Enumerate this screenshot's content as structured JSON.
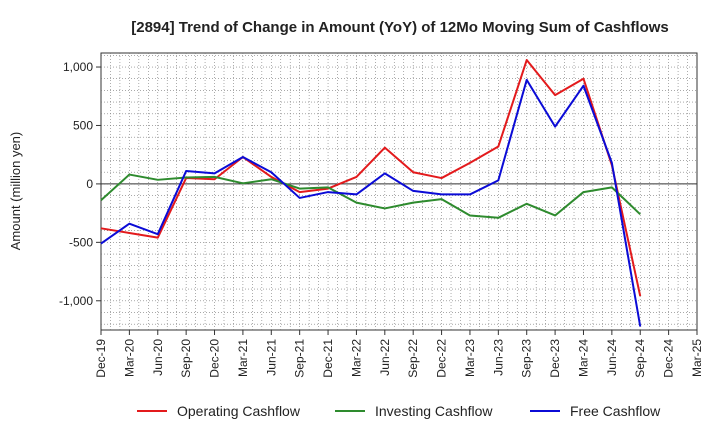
{
  "chart_data": {
    "type": "line",
    "title": "[2894]  Trend of Change in Amount (YoY) of 12Mo Moving Sum of Cashflows",
    "xlabel": "",
    "ylabel": "Amount (million yen)",
    "ylim": [
      -1250,
      1120
    ],
    "yticks": [
      -1000,
      -500,
      0,
      500,
      1000
    ],
    "ytick_labels": [
      "-1,000",
      "-500",
      "0",
      "500",
      "1,000"
    ],
    "grid": true,
    "legend_position": "bottom",
    "categories": [
      "Dec-19",
      "Mar-20",
      "Jun-20",
      "Sep-20",
      "Dec-20",
      "Mar-21",
      "Jun-21",
      "Sep-21",
      "Dec-21",
      "Mar-22",
      "Jun-22",
      "Sep-22",
      "Dec-22",
      "Mar-23",
      "Jun-23",
      "Sep-23",
      "Dec-23",
      "Mar-24",
      "Jun-24",
      "Sep-24",
      "Dec-24",
      "Mar-25"
    ],
    "series": [
      {
        "name": "Operating Cashflow",
        "color": "#e31a1c",
        "values": [
          -380,
          -420,
          -460,
          50,
          40,
          230,
          60,
          -70,
          -40,
          60,
          310,
          100,
          50,
          180,
          320,
          1060,
          760,
          900,
          160,
          -960,
          null,
          null
        ]
      },
      {
        "name": "Investing Cashflow",
        "color": "#2e8b2e",
        "values": [
          -140,
          80,
          35,
          55,
          60,
          5,
          40,
          -40,
          -30,
          -160,
          -210,
          -160,
          -130,
          -270,
          -290,
          -170,
          -270,
          -70,
          -30,
          -260,
          null,
          null
        ]
      },
      {
        "name": "Free Cashflow",
        "color": "#0b0bd6",
        "values": [
          -510,
          -340,
          -430,
          110,
          90,
          230,
          100,
          -120,
          -70,
          -90,
          90,
          -60,
          -90,
          -90,
          30,
          890,
          490,
          840,
          180,
          -1220,
          null,
          null
        ]
      }
    ]
  }
}
